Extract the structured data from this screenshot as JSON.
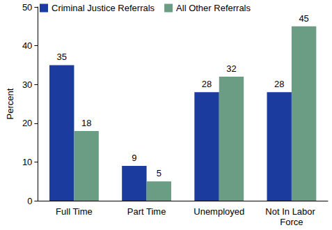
{
  "chart_data": {
    "type": "bar",
    "categories": [
      "Full Time",
      "Part Time",
      "Unemployed",
      "Not In Labor Force"
    ],
    "series": [
      {
        "name": "Criminal Justice Referrals",
        "color": "#1b3c9e",
        "values": [
          35,
          9,
          28,
          28
        ]
      },
      {
        "name": "All Other Referrals",
        "color": "#6b9c84",
        "values": [
          18,
          5,
          32,
          45
        ]
      }
    ],
    "y_label": "Percent",
    "ylim": [
      0,
      50
    ],
    "yticks": [
      0,
      10,
      20,
      30,
      40,
      50
    ],
    "grid": false,
    "legend": "top-left",
    "data_labels": true
  }
}
